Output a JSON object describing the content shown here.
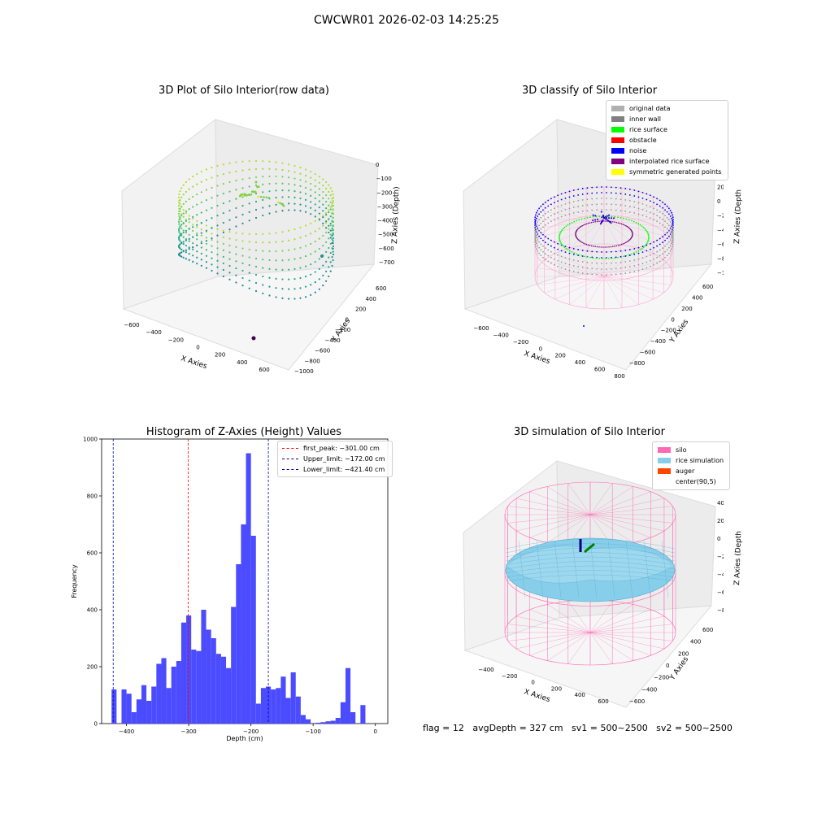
{
  "suptitle": "CWCWR01 2026-02-03 14:25:25",
  "panels": {
    "raw": {
      "title": "3D Plot of Silo Interior(row data)",
      "xlabel": "X Axies",
      "ylabel": "Y Axies",
      "zlabel": "Z Axies (Depth)",
      "xticks": [
        "-600",
        "-400",
        "-200",
        "0",
        "200",
        "400",
        "600"
      ],
      "yticks": [
        "600",
        "400",
        "200",
        "0",
        "-200",
        "-400",
        "-600",
        "-800",
        "-1000"
      ],
      "zticks": [
        "0",
        "-100",
        "-200",
        "-300",
        "-400",
        "-500",
        "-600",
        "-700"
      ]
    },
    "classify": {
      "title": "3D classify of Silo Interior",
      "xlabel": "X Axies",
      "ylabel": "Y Axies",
      "zlabel": "Z Axies (Depth)",
      "xticks": [
        "-600",
        "-400",
        "-200",
        "0",
        "200",
        "400",
        "600",
        "800"
      ],
      "yticks": [
        "600",
        "400",
        "200",
        "0",
        "-200",
        "-400",
        "-600",
        "-800"
      ],
      "zticks": [
        "400",
        "200",
        "0",
        "-200",
        "-400",
        "-600",
        "-800",
        "-1000"
      ],
      "legend": [
        {
          "label": "original data",
          "color": "#b0b0b0"
        },
        {
          "label": "inner wall",
          "color": "#808080"
        },
        {
          "label": "rice surface",
          "color": "#00ff00"
        },
        {
          "label": "obstacle",
          "color": "#ff0000"
        },
        {
          "label": "noise",
          "color": "#0000ff"
        },
        {
          "label": "interpolated rice surface",
          "color": "#800080"
        },
        {
          "label": "symmetric generated points",
          "color": "#ffff00"
        }
      ]
    },
    "simulation": {
      "title": "3D simulation of Silo Interior",
      "xlabel": "X Axies",
      "ylabel": "Y Axies",
      "zlabel": "Z Axies (Depth)",
      "xticks": [
        "-400",
        "-200",
        "0",
        "200",
        "400",
        "600"
      ],
      "yticks": [
        "600",
        "400",
        "200",
        "0",
        "-200",
        "-400",
        "-600"
      ],
      "zticks": [
        "400",
        "200",
        "0",
        "-200",
        "-400",
        "-600",
        "-800"
      ],
      "legend": [
        {
          "label": "silo",
          "color": "#ff69b4"
        },
        {
          "label": "rice simulation",
          "color": "#87ceeb"
        },
        {
          "label": "auger",
          "color": "#ff4500"
        },
        {
          "label": "center(90,5)",
          "color": "#ffffff"
        }
      ]
    }
  },
  "chart_data": {
    "type": "bar",
    "title": "Histogram of Z-Axies (Height) Values",
    "xlabel": "Depth (cm)",
    "ylabel": "Frequency",
    "xlim": [
      -440,
      20
    ],
    "ylim": [
      0,
      1000
    ],
    "xticks": [
      -400,
      -300,
      -200,
      -100,
      0
    ],
    "yticks": [
      0,
      200,
      400,
      600,
      800,
      1000
    ],
    "bin_width": 8,
    "bar_color": "#4b4bff",
    "bins": [
      {
        "x": -424,
        "v": 120
      },
      {
        "x": -416,
        "v": 0
      },
      {
        "x": -408,
        "v": 120
      },
      {
        "x": -400,
        "v": 105
      },
      {
        "x": -392,
        "v": 40
      },
      {
        "x": -384,
        "v": 85
      },
      {
        "x": -376,
        "v": 135
      },
      {
        "x": -368,
        "v": 80
      },
      {
        "x": -360,
        "v": 130
      },
      {
        "x": -352,
        "v": 210
      },
      {
        "x": -344,
        "v": 230
      },
      {
        "x": -336,
        "v": 125
      },
      {
        "x": -328,
        "v": 200
      },
      {
        "x": -320,
        "v": 220
      },
      {
        "x": -312,
        "v": 355
      },
      {
        "x": -304,
        "v": 380
      },
      {
        "x": -296,
        "v": 260
      },
      {
        "x": -288,
        "v": 255
      },
      {
        "x": -280,
        "v": 400
      },
      {
        "x": -272,
        "v": 330
      },
      {
        "x": -264,
        "v": 300
      },
      {
        "x": -256,
        "v": 245
      },
      {
        "x": -248,
        "v": 235
      },
      {
        "x": -240,
        "v": 195
      },
      {
        "x": -232,
        "v": 410
      },
      {
        "x": -224,
        "v": 560
      },
      {
        "x": -216,
        "v": 700
      },
      {
        "x": -208,
        "v": 950
      },
      {
        "x": -200,
        "v": 660
      },
      {
        "x": -192,
        "v": 70
      },
      {
        "x": -184,
        "v": 125
      },
      {
        "x": -176,
        "v": 130
      },
      {
        "x": -168,
        "v": 120
      },
      {
        "x": -160,
        "v": 125
      },
      {
        "x": -152,
        "v": 165
      },
      {
        "x": -144,
        "v": 90
      },
      {
        "x": -136,
        "v": 180
      },
      {
        "x": -128,
        "v": 95
      },
      {
        "x": -120,
        "v": 30
      },
      {
        "x": -112,
        "v": 15
      },
      {
        "x": -104,
        "v": 0
      },
      {
        "x": -96,
        "v": 3
      },
      {
        "x": -88,
        "v": 5
      },
      {
        "x": -80,
        "v": 8
      },
      {
        "x": -72,
        "v": 10
      },
      {
        "x": -64,
        "v": 20
      },
      {
        "x": -56,
        "v": 75
      },
      {
        "x": -48,
        "v": 195
      },
      {
        "x": -40,
        "v": 40
      },
      {
        "x": -32,
        "v": 0
      },
      {
        "x": -24,
        "v": 65
      }
    ],
    "vlines": [
      {
        "label": "first_peak: -301.00 cm",
        "x": -301.0,
        "color": "#ff0000"
      },
      {
        "label": "Upper_limit: -172.00 cm",
        "x": -172.0,
        "color": "#0000aa"
      },
      {
        "label": "Lower_limit: -421.40 cm",
        "x": -421.4,
        "color": "#0000aa"
      }
    ]
  },
  "status_line": "flag = 12   avgDepth = 327 cm   sv1 = 500~2500   sv2 = 500~2500"
}
